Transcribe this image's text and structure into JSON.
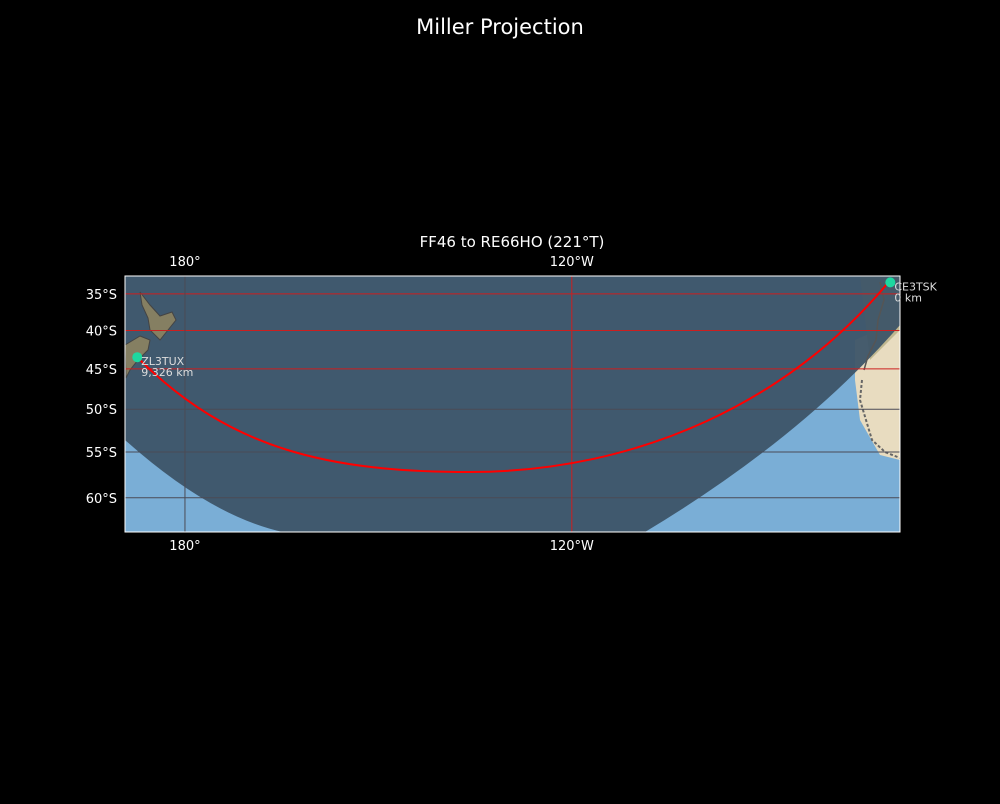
{
  "figure_title": "Miller Projection",
  "map": {
    "title": "FF46 to RE66HO (221°T)",
    "projection": "Miller",
    "extent": {
      "lon_min": 170.7,
      "lon_max": -69.1,
      "lat_min": -63.5,
      "lat_max": -32.5
    },
    "lon_ticks": [
      {
        "lon": 180,
        "label": "180°"
      },
      {
        "lon": -120,
        "label": "120°W"
      }
    ],
    "lat_ticks": [
      {
        "lat": -35,
        "label": "35°S"
      },
      {
        "lat": -40,
        "label": "40°S"
      },
      {
        "lat": -45,
        "label": "45°S"
      },
      {
        "lat": -50,
        "label": "50°S"
      },
      {
        "lat": -55,
        "label": "55°S"
      },
      {
        "lat": -60,
        "label": "60°S"
      }
    ],
    "stations": [
      {
        "call": "ZL3TUX",
        "distance": "9,326 km",
        "lat": -43.5,
        "lon": 172.6
      },
      {
        "call": "CE3TSK",
        "distance": "0 km",
        "lat": -33.4,
        "lon": -70.6
      }
    ],
    "colors": {
      "background": "#000000",
      "ocean": "#7aaed6",
      "night_shade": "#3d5468",
      "land": "#b9ad87",
      "path": "#ff0000",
      "station": "#1dd8a0",
      "grid_red": "#cc1f1f",
      "grid_gray": "#4a4a55"
    }
  }
}
